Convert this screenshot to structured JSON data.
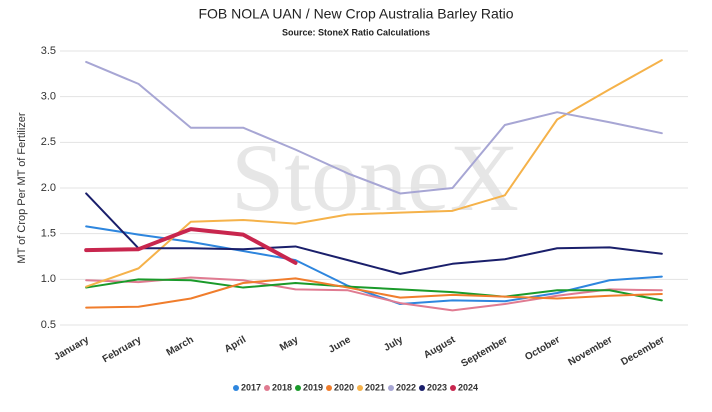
{
  "chart_data": {
    "type": "line",
    "title": "FOB NOLA UAN / New Crop Australia Barley Ratio",
    "subtitle": "Source: StoneX Ratio Calculations",
    "watermark": "StoneX",
    "y_label": "MT of Crop Per MT of Fertilizer",
    "categories": [
      "January",
      "February",
      "March",
      "April",
      "May",
      "June",
      "July",
      "August",
      "September",
      "October",
      "November",
      "December"
    ],
    "series": [
      {
        "name": "2017",
        "color": "#2e86de",
        "values": [
          1.58,
          1.49,
          1.41,
          1.31,
          1.21,
          0.93,
          0.73,
          0.77,
          0.76,
          0.85,
          0.99,
          1.03
        ]
      },
      {
        "name": "2018",
        "color": "#e07b91",
        "values": [
          0.99,
          0.97,
          1.02,
          0.99,
          0.89,
          0.88,
          0.74,
          0.66,
          0.73,
          0.82,
          0.89,
          0.88
        ]
      },
      {
        "name": "2019",
        "color": "#1a9a2a",
        "values": [
          0.91,
          1.0,
          0.99,
          0.91,
          0.96,
          0.92,
          0.89,
          0.86,
          0.81,
          0.88,
          0.88,
          0.77
        ]
      },
      {
        "name": "2020",
        "color": "#f07d2c",
        "values": [
          0.69,
          0.7,
          0.79,
          0.96,
          1.01,
          0.91,
          0.8,
          0.83,
          0.81,
          0.79,
          0.82,
          0.84
        ]
      },
      {
        "name": "2021",
        "color": "#f5b24a",
        "values": [
          0.92,
          1.12,
          1.63,
          1.65,
          1.61,
          1.71,
          1.73,
          1.75,
          1.92,
          2.75,
          3.08,
          3.4
        ]
      },
      {
        "name": "2022",
        "color": "#a7a6d4",
        "values": [
          3.38,
          3.14,
          2.66,
          2.66,
          2.42,
          2.16,
          1.94,
          2.0,
          2.69,
          2.83,
          2.72,
          2.6
        ]
      },
      {
        "name": "2023",
        "color": "#1a1f6b",
        "values": [
          1.94,
          1.34,
          1.34,
          1.33,
          1.36,
          1.21,
          1.06,
          1.17,
          1.22,
          1.34,
          1.35,
          1.28
        ]
      },
      {
        "name": "2024",
        "color": "#c8264e",
        "width": 4,
        "values": [
          1.32,
          1.33,
          1.55,
          1.49,
          1.18,
          null,
          null,
          null,
          null,
          null,
          null,
          null
        ]
      }
    ],
    "ylim": [
      0.5,
      3.5
    ],
    "yticks": [
      0.5,
      {
        "value": 1,
        "label": "1.0"
      },
      1.5,
      {
        "value": 2,
        "label": "2.0"
      },
      2.5,
      {
        "value": 3,
        "label": "3.0"
      },
      3.5
    ],
    "grid": true,
    "legend": "bottom"
  }
}
